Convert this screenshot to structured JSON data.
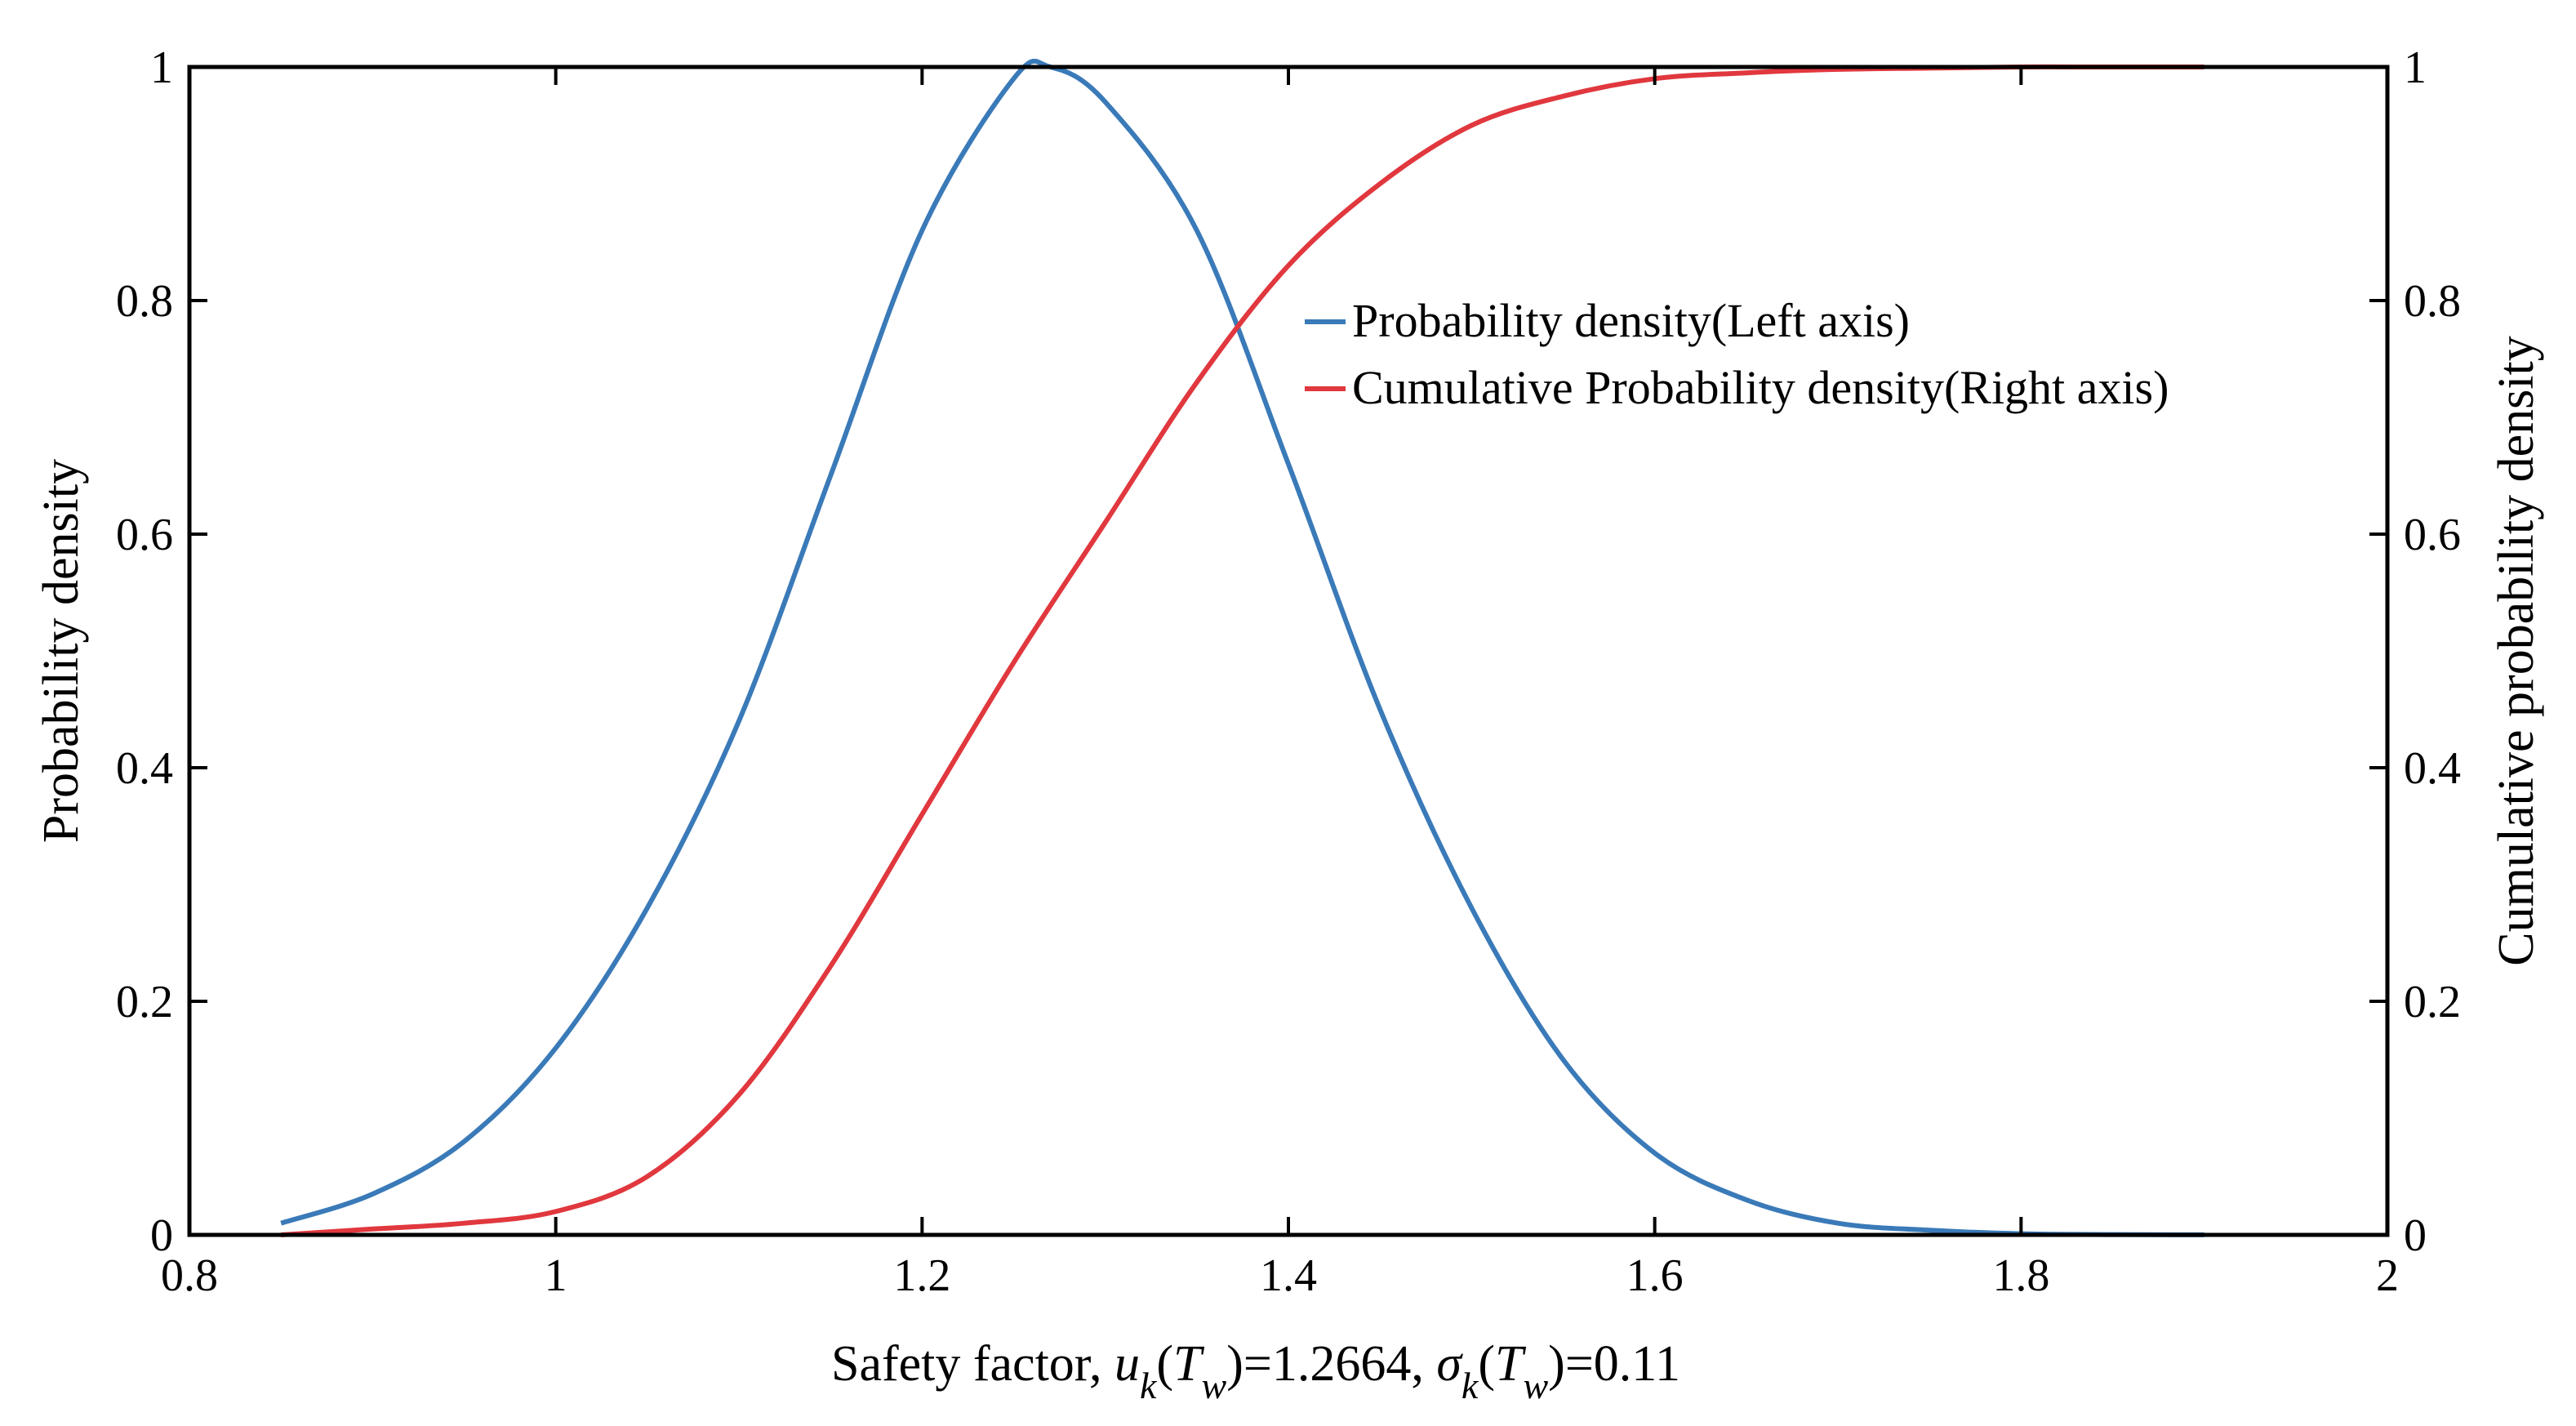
{
  "chart_data": {
    "type": "line",
    "dual_axis": true,
    "xlabel": {
      "parts": [
        "Safety factor, ",
        "u",
        "k",
        "(",
        "T",
        "w",
        ")=1.2664, ",
        "σ",
        "k",
        "(",
        "T",
        "w",
        ")=0.11"
      ]
    },
    "ylabel_left": "Probability density",
    "ylabel_right": "Cumulative probability density",
    "xlim": [
      0.8,
      2
    ],
    "ylim_left": [
      0,
      1
    ],
    "ylim_right": [
      0,
      1
    ],
    "x_ticks": [
      0.8,
      1,
      1.2,
      1.4,
      1.6,
      1.8,
      2
    ],
    "x_tick_labels": [
      "0.8",
      "1",
      "1.2",
      "1.4",
      "1.6",
      "1.8",
      "2"
    ],
    "y_ticks_left": [
      0,
      0.2,
      0.4,
      0.6,
      0.8,
      1
    ],
    "y_tick_labels_left": [
      "0",
      "0.2",
      "0.4",
      "0.6",
      "0.8",
      "1"
    ],
    "y_ticks_right": [
      0,
      0.2,
      0.4,
      0.6,
      0.8,
      1
    ],
    "y_tick_labels_right": [
      "0",
      "0.2",
      "0.4",
      "0.6",
      "0.8",
      "1"
    ],
    "grid": false,
    "legend_position": "center-right",
    "series": [
      {
        "name": "Probability density(Left axis)",
        "axis": "left",
        "color": "#3a7ab8",
        "x": [
          0.85,
          0.9,
          0.95,
          1.0,
          1.05,
          1.1,
          1.15,
          1.2,
          1.25,
          1.27,
          1.3,
          1.35,
          1.4,
          1.45,
          1.5,
          1.55,
          1.6,
          1.65,
          1.7,
          1.75,
          1.8,
          1.85,
          1.9
        ],
        "y": [
          0.01,
          0.035,
          0.08,
          0.16,
          0.28,
          0.44,
          0.65,
          0.86,
          0.99,
          1.0,
          0.97,
          0.86,
          0.66,
          0.45,
          0.28,
          0.15,
          0.07,
          0.03,
          0.01,
          0.004,
          0.001,
          0.0003,
          0.0001
        ]
      },
      {
        "name": "Cumulative Probability density(Right axis)",
        "axis": "right",
        "color": "#e0383e",
        "x": [
          0.85,
          0.9,
          0.95,
          1.0,
          1.05,
          1.1,
          1.15,
          1.2,
          1.25,
          1.3,
          1.35,
          1.4,
          1.45,
          1.5,
          1.55,
          1.6,
          1.65,
          1.7,
          1.75,
          1.8,
          1.85,
          1.9
        ],
        "y": [
          0.0,
          0.005,
          0.01,
          0.02,
          0.05,
          0.12,
          0.23,
          0.36,
          0.49,
          0.61,
          0.73,
          0.83,
          0.9,
          0.95,
          0.975,
          0.99,
          0.995,
          0.998,
          0.999,
          1.0,
          1.0,
          1.0
        ]
      }
    ]
  }
}
